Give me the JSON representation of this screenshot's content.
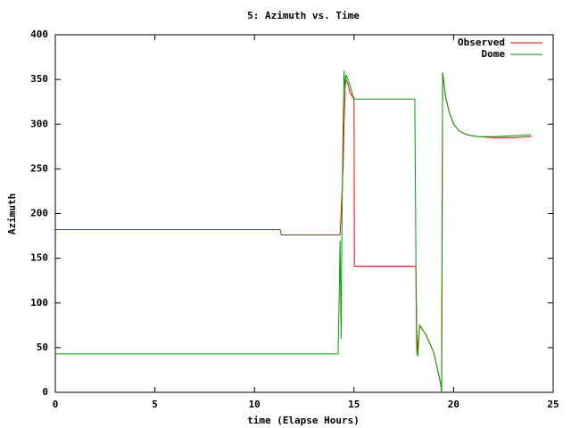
{
  "chart_data": {
    "type": "line",
    "title": "5: Azimuth vs. Time",
    "x_label": "time (Elapse Hours)",
    "y_label": "Azimuth",
    "xlim": [
      0,
      25
    ],
    "xticks": [
      0,
      5,
      10,
      15,
      20,
      25
    ],
    "ylim": [
      0,
      400
    ],
    "yticks": [
      0,
      50,
      100,
      150,
      200,
      250,
      300,
      350,
      400
    ],
    "legend": "top-right",
    "series": [
      {
        "name": "Observed",
        "color": "#ff0000",
        "x": [
          0,
          11.3,
          11.35,
          14.3,
          14.35,
          14.45,
          14.5,
          14.55,
          14.6,
          14.7,
          14.8,
          14.95,
          15.0,
          15.02,
          18.1,
          18.12,
          18.15,
          18.2,
          18.3,
          18.6,
          19.0,
          19.2,
          19.35,
          19.4,
          19.45,
          19.6,
          19.8,
          20.0,
          20.3,
          20.7,
          21.2,
          22.0,
          23.0,
          23.9
        ],
        "values": [
          182,
          182,
          176,
          176,
          200,
          250,
          300,
          340,
          350,
          345,
          335,
          330,
          330,
          141,
          141,
          120,
          70,
          45,
          75,
          65,
          45,
          25,
          10,
          0,
          357,
          330,
          312,
          300,
          292,
          288,
          286,
          285,
          285,
          286
        ]
      },
      {
        "name": "Dome",
        "color": "#00a000",
        "x": [
          0,
          14.2,
          14.25,
          14.3,
          14.35,
          14.4,
          14.45,
          14.5,
          14.55,
          14.6,
          14.7,
          14.85,
          14.95,
          15.0,
          18.05,
          18.1,
          18.12,
          18.15,
          18.2,
          18.3,
          18.6,
          19.0,
          19.2,
          19.35,
          19.4,
          19.45,
          19.6,
          19.8,
          20.0,
          20.3,
          20.7,
          21.2,
          22.0,
          23.0,
          23.9
        ],
        "values": [
          43,
          43,
          100,
          170,
          60,
          200,
          300,
          360,
          340,
          355,
          350,
          340,
          330,
          328,
          328,
          180,
          100,
          45,
          40,
          75,
          65,
          45,
          25,
          10,
          0,
          358,
          330,
          312,
          300,
          292,
          288,
          286,
          286,
          287,
          288
        ]
      }
    ]
  }
}
